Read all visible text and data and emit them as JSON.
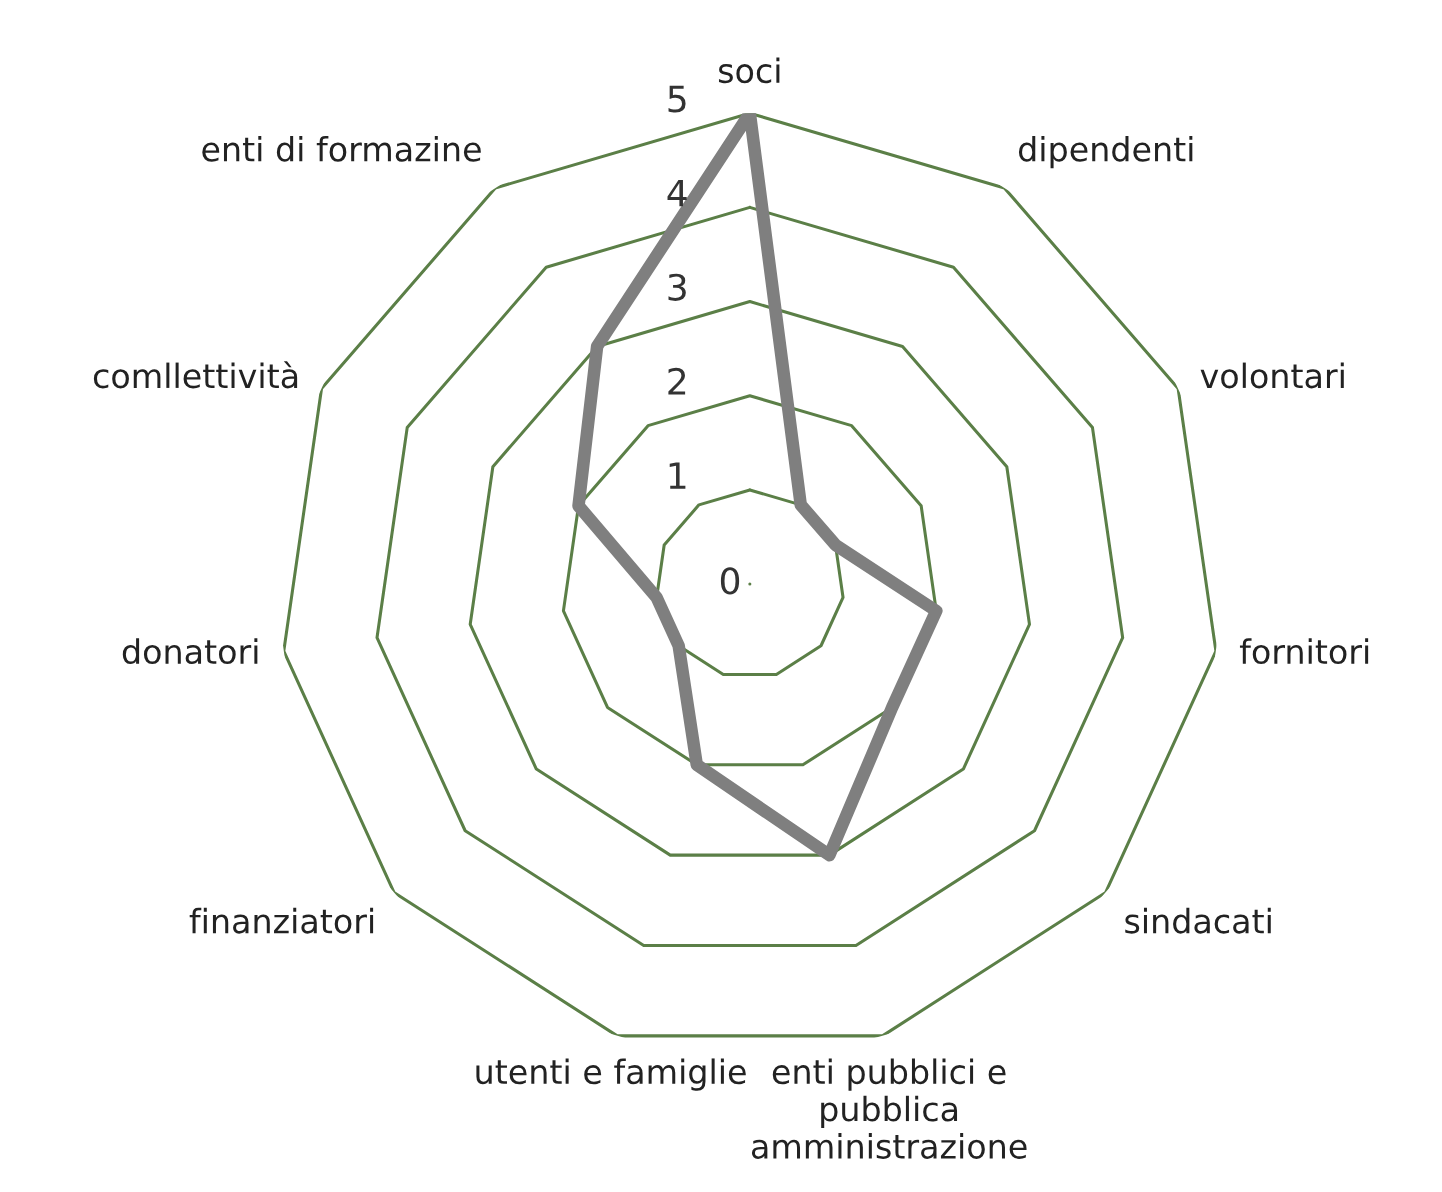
{
  "chart_data": {
    "type": "radar",
    "categories": [
      "soci",
      "dipendenti",
      "volontari",
      "fornitori",
      "sindacati",
      "enti pubblici e\npubblica\namministrazione",
      "utenti e famiglie",
      "finanziatori",
      "donatori",
      "comllettività",
      "enti di formazine"
    ],
    "series": [
      {
        "color": "#7f7f7f",
        "values": [
          5,
          1,
          1,
          2,
          2,
          3,
          2,
          1,
          1,
          2,
          3
        ]
      }
    ],
    "ylim": [
      0,
      5
    ],
    "yticks": [
      0,
      1,
      2,
      3,
      4,
      5
    ],
    "grid": true,
    "marker": "none"
  }
}
